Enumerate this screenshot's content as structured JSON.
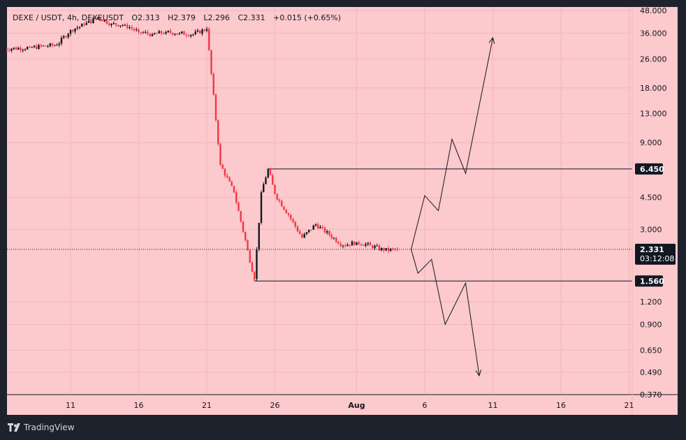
{
  "legend": {
    "symbol": "DEXE / USDT, 4h, DEXEUSDT",
    "open": "O2.313",
    "high": "H2.379",
    "low": "L2.296",
    "close": "C2.331",
    "change": "+0.015 (+0.65%)"
  },
  "brand": {
    "name": "TradingView",
    "logo_icon": "tradingview-logo-icon"
  },
  "colors": {
    "panel_bg": "#fcc9cc",
    "frame_bg": "#1e222d",
    "up_candle": "#131722",
    "down_candle": "#f23645",
    "grid": "#f0b8bb",
    "drawing": "#131722",
    "badge_bg": "#131722"
  },
  "chart_data": {
    "type": "candlestick",
    "symbol": "DEXE / USDT",
    "interval": "4h",
    "y_scale": "log",
    "ylim": [
      0.37,
      48
    ],
    "y_ticks": [
      "48.000",
      "36.000",
      "26.000",
      "18.000",
      "13.000",
      "9.000",
      "6.450",
      "4.500",
      "3.000",
      "2.331",
      "1.560",
      "1.200",
      "0.900",
      "0.650",
      "0.490",
      "0.370"
    ],
    "x_ticks": [
      "11",
      "16",
      "21",
      "26",
      "Aug",
      "6",
      "11",
      "16",
      "21"
    ],
    "grid": true,
    "price_series_close": [
      {
        "date": "2023-07-06",
        "close": 29.5
      },
      {
        "date": "2023-07-08",
        "close": 30.0
      },
      {
        "date": "2023-07-10",
        "close": 31.0
      },
      {
        "date": "2023-07-11",
        "close": 37.5
      },
      {
        "date": "2023-07-12",
        "close": 40.0
      },
      {
        "date": "2023-07-13",
        "close": 44.0
      },
      {
        "date": "2023-07-14",
        "close": 40.5
      },
      {
        "date": "2023-07-15",
        "close": 40.0
      },
      {
        "date": "2023-07-16",
        "close": 36.5
      },
      {
        "date": "2023-07-17",
        "close": 35.5
      },
      {
        "date": "2023-07-18",
        "close": 36.5
      },
      {
        "date": "2023-07-19",
        "close": 36.0
      },
      {
        "date": "2023-07-20",
        "close": 35.5
      },
      {
        "date": "2023-07-21",
        "close": 38.0
      },
      {
        "date": "2023-07-22",
        "close": 6.8
      },
      {
        "date": "2023-07-23",
        "close": 4.8
      },
      {
        "date": "2023-07-24",
        "close": 2.3
      },
      {
        "date": "2023-07-24T12:00",
        "close": 1.6
      },
      {
        "date": "2023-07-25",
        "close": 4.8
      },
      {
        "date": "2023-07-25T12:00",
        "close": 6.45
      },
      {
        "date": "2023-07-26",
        "close": 4.7
      },
      {
        "date": "2023-07-27",
        "close": 3.6
      },
      {
        "date": "2023-07-28",
        "close": 2.7
      },
      {
        "date": "2023-07-29",
        "close": 3.2
      },
      {
        "date": "2023-07-30",
        "close": 2.8
      },
      {
        "date": "2023-07-31",
        "close": 2.45
      },
      {
        "date": "2023-08-01",
        "close": 2.55
      },
      {
        "date": "2023-08-02",
        "close": 2.45
      },
      {
        "date": "2023-08-03",
        "close": 2.3
      },
      {
        "date": "2023-08-04",
        "close": 2.331
      }
    ],
    "levels": [
      {
        "price": 6.45,
        "label": "6.450"
      },
      {
        "price": 1.56,
        "label": "1.560"
      }
    ],
    "current_price": {
      "price": 2.331,
      "label": "2.331",
      "countdown": "03:12:08"
    },
    "projections": [
      {
        "name": "bullish-path",
        "points": [
          {
            "date": "2023-08-05",
            "price": 2.331
          },
          {
            "date": "2023-08-06",
            "price": 4.6
          },
          {
            "date": "2023-08-07",
            "price": 3.8
          },
          {
            "date": "2023-08-08",
            "price": 9.4
          },
          {
            "date": "2023-08-09",
            "price": 6.1
          },
          {
            "date": "2023-08-11",
            "price": 34.0
          }
        ]
      },
      {
        "name": "bearish-path",
        "points": [
          {
            "date": "2023-08-05",
            "price": 2.331
          },
          {
            "date": "2023-08-05T12:00",
            "price": 1.72
          },
          {
            "date": "2023-08-06T12:00",
            "price": 2.05
          },
          {
            "date": "2023-08-07T12:00",
            "price": 0.9
          },
          {
            "date": "2023-08-09",
            "price": 1.52
          },
          {
            "date": "2023-08-10",
            "price": 0.47
          }
        ]
      }
    ]
  }
}
